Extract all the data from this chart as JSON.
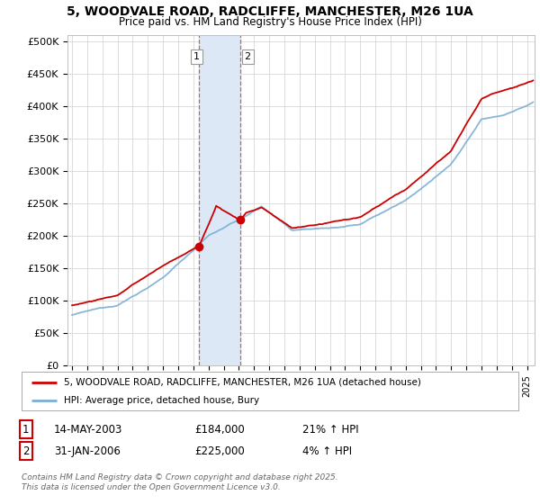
{
  "title1": "5, WOODVALE ROAD, RADCLIFFE, MANCHESTER, M26 1UA",
  "title2": "Price paid vs. HM Land Registry's House Price Index (HPI)",
  "ylabel_ticks": [
    "£0",
    "£50K",
    "£100K",
    "£150K",
    "£200K",
    "£250K",
    "£300K",
    "£350K",
    "£400K",
    "£450K",
    "£500K"
  ],
  "ytick_vals": [
    0,
    50000,
    100000,
    150000,
    200000,
    250000,
    300000,
    350000,
    400000,
    450000,
    500000
  ],
  "xlim_start": 1994.7,
  "xlim_end": 2025.5,
  "ylim_min": 0,
  "ylim_max": 510000,
  "purchase1_date": 2003.37,
  "purchase1_price": 184000,
  "purchase1_label": "1",
  "purchase2_date": 2006.08,
  "purchase2_price": 225000,
  "purchase2_label": "2",
  "hpi_color": "#7bafd4",
  "price_color": "#cc0000",
  "shade_color": "#dce8f5",
  "legend_label1": "5, WOODVALE ROAD, RADCLIFFE, MANCHESTER, M26 1UA (detached house)",
  "legend_label2": "HPI: Average price, detached house, Bury",
  "table_row1": [
    "1",
    "14-MAY-2003",
    "£184,000",
    "21% ↑ HPI"
  ],
  "table_row2": [
    "2",
    "31-JAN-2006",
    "£225,000",
    "4% ↑ HPI"
  ],
  "footer": "Contains HM Land Registry data © Crown copyright and database right 2025.\nThis data is licensed under the Open Government Licence v3.0.",
  "background_color": "#ffffff",
  "grid_color": "#d8d8d8"
}
